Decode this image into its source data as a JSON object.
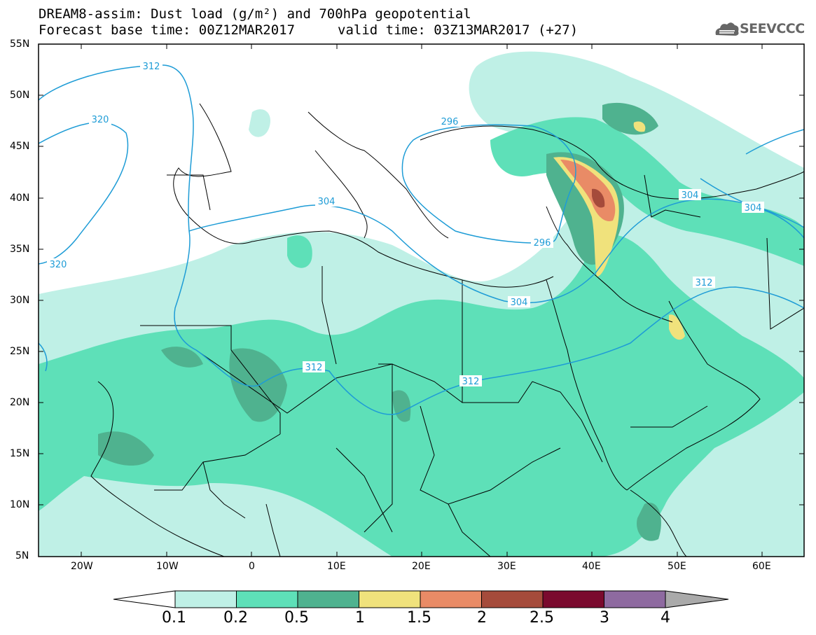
{
  "title_line1": "DREAM8-assim: Dust load (g/m²) and 700hPa geopotential",
  "title_line2": "Forecast base time: 00Z12MAR2017",
  "title_line2b": "valid time: 03Z13MAR2017 (+27)",
  "logo": {
    "text": "SEEVCCC",
    "icon": "cloud-logo-icon"
  },
  "map": {
    "lon_range": [
      -25,
      65
    ],
    "lat_range": [
      5,
      55
    ],
    "lat_labels": [
      "55N",
      "50N",
      "45N",
      "40N",
      "35N",
      "30N",
      "25N",
      "20N",
      "15N",
      "10N",
      "5N"
    ],
    "lon_labels": [
      "20W",
      "10W",
      "0",
      "10E",
      "20E",
      "30E",
      "40E",
      "50E",
      "60E"
    ],
    "contour_labels": [
      "312",
      "320",
      "296",
      "304",
      "320",
      "304",
      "296",
      "304",
      "312",
      "312",
      "312",
      "304"
    ]
  },
  "colorbar": {
    "labels": [
      "0.1",
      "0.2",
      "0.5",
      "1",
      "1.5",
      "2",
      "2.5",
      "3",
      "4"
    ],
    "colors": [
      "#ffffff",
      "#bff0e6",
      "#5ee0b8",
      "#4fb28f",
      "#f0e27c",
      "#e98b66",
      "#a54b3b",
      "#7a0a2e",
      "#8e6aa0",
      "#aaaaaa"
    ]
  }
}
